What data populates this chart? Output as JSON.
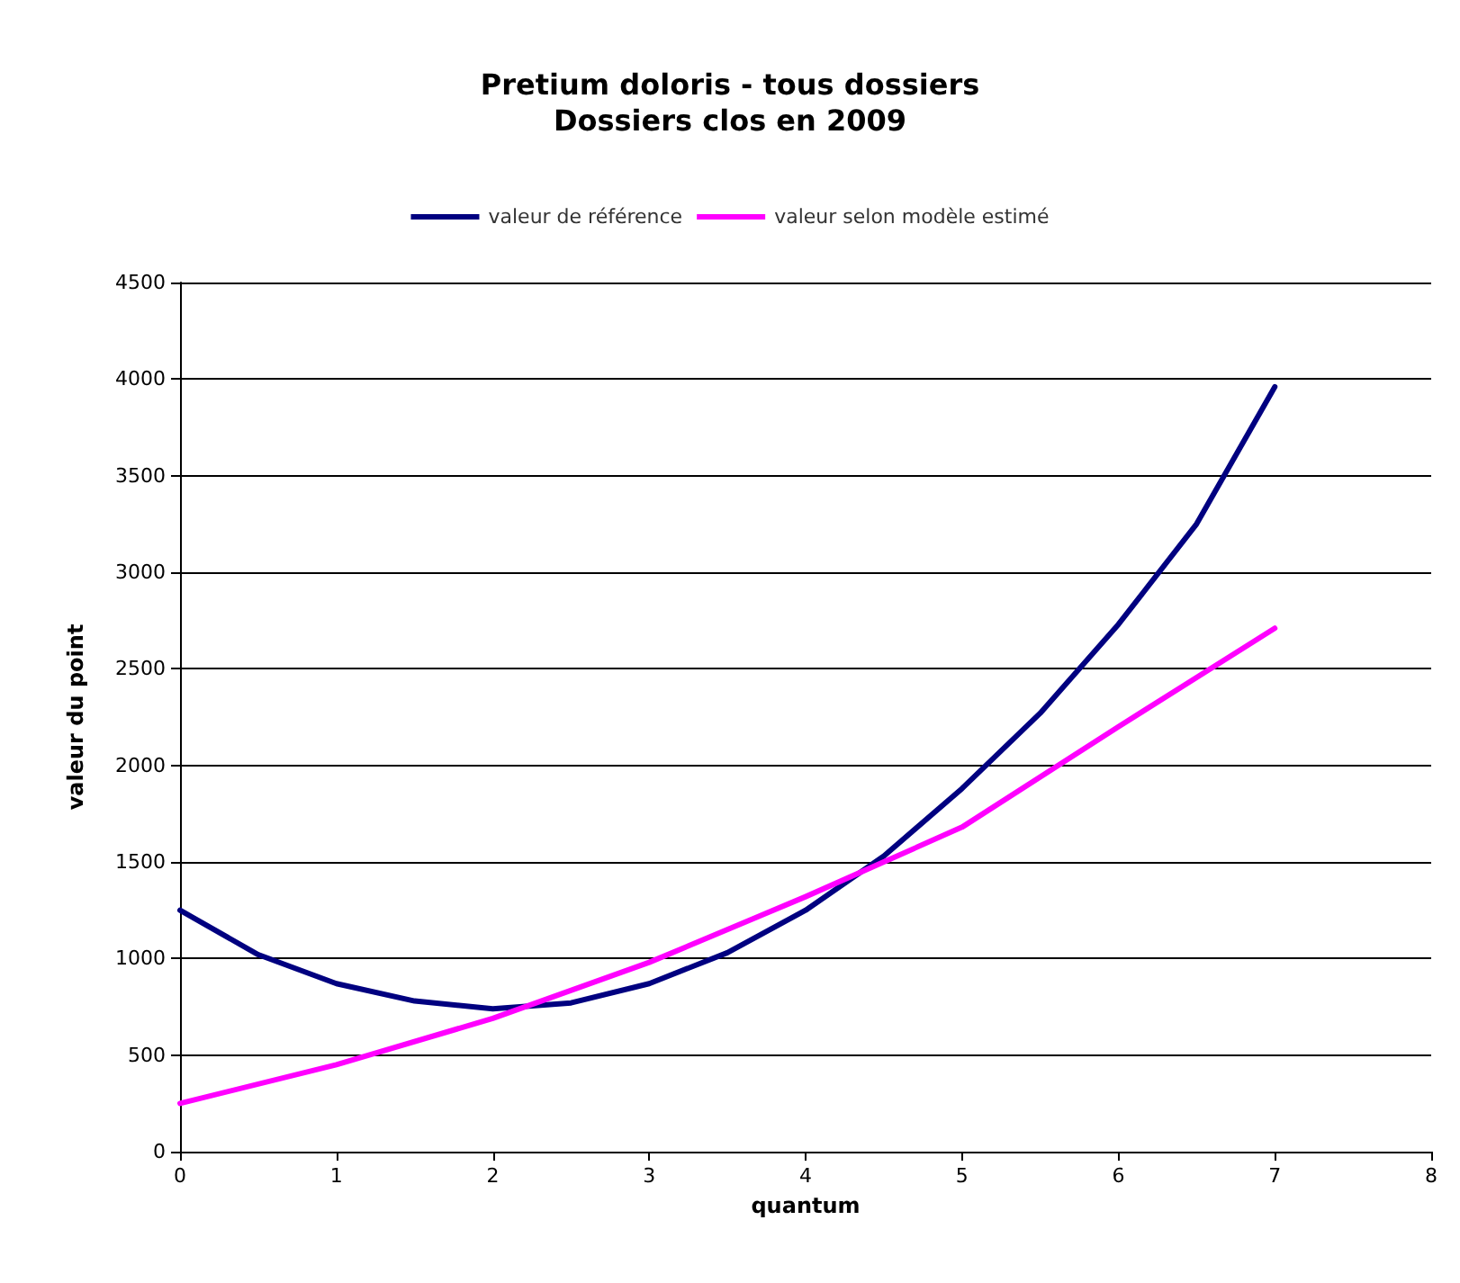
{
  "chart_data": {
    "type": "line",
    "title": "Pretium doloris - tous dossiers\nDossiers clos en 2009",
    "xlabel": "quantum",
    "ylabel": "valeur du point",
    "series": [
      {
        "name": "valeur de référence",
        "color": "#000080",
        "x": [
          0,
          0.5,
          1,
          1.5,
          2,
          2.5,
          3,
          3.5,
          4,
          4.5,
          5,
          5.5,
          6,
          6.5,
          7
        ],
        "values": [
          1250,
          1020,
          870,
          780,
          740,
          770,
          870,
          1030,
          1250,
          1530,
          1880,
          2270,
          2730,
          3250,
          3960
        ]
      },
      {
        "name": "valeur selon modèle estimé",
        "color": "#ff00ff",
        "x": [
          0,
          1,
          2,
          3,
          4,
          4.5,
          5,
          6,
          7
        ],
        "values": [
          250,
          450,
          690,
          980,
          1320,
          1500,
          1680,
          2200,
          2710
        ]
      }
    ],
    "xlim": [
      0,
      8
    ],
    "xticks": [
      0,
      1,
      2,
      3,
      4,
      5,
      6,
      7,
      8
    ],
    "ylim": [
      0,
      4500
    ],
    "yticks": [
      0,
      500,
      1000,
      1500,
      2000,
      2500,
      3000,
      3500,
      4000,
      4500
    ],
    "grid": "y",
    "legend": "top",
    "marker": "none",
    "line_style": "solid"
  }
}
